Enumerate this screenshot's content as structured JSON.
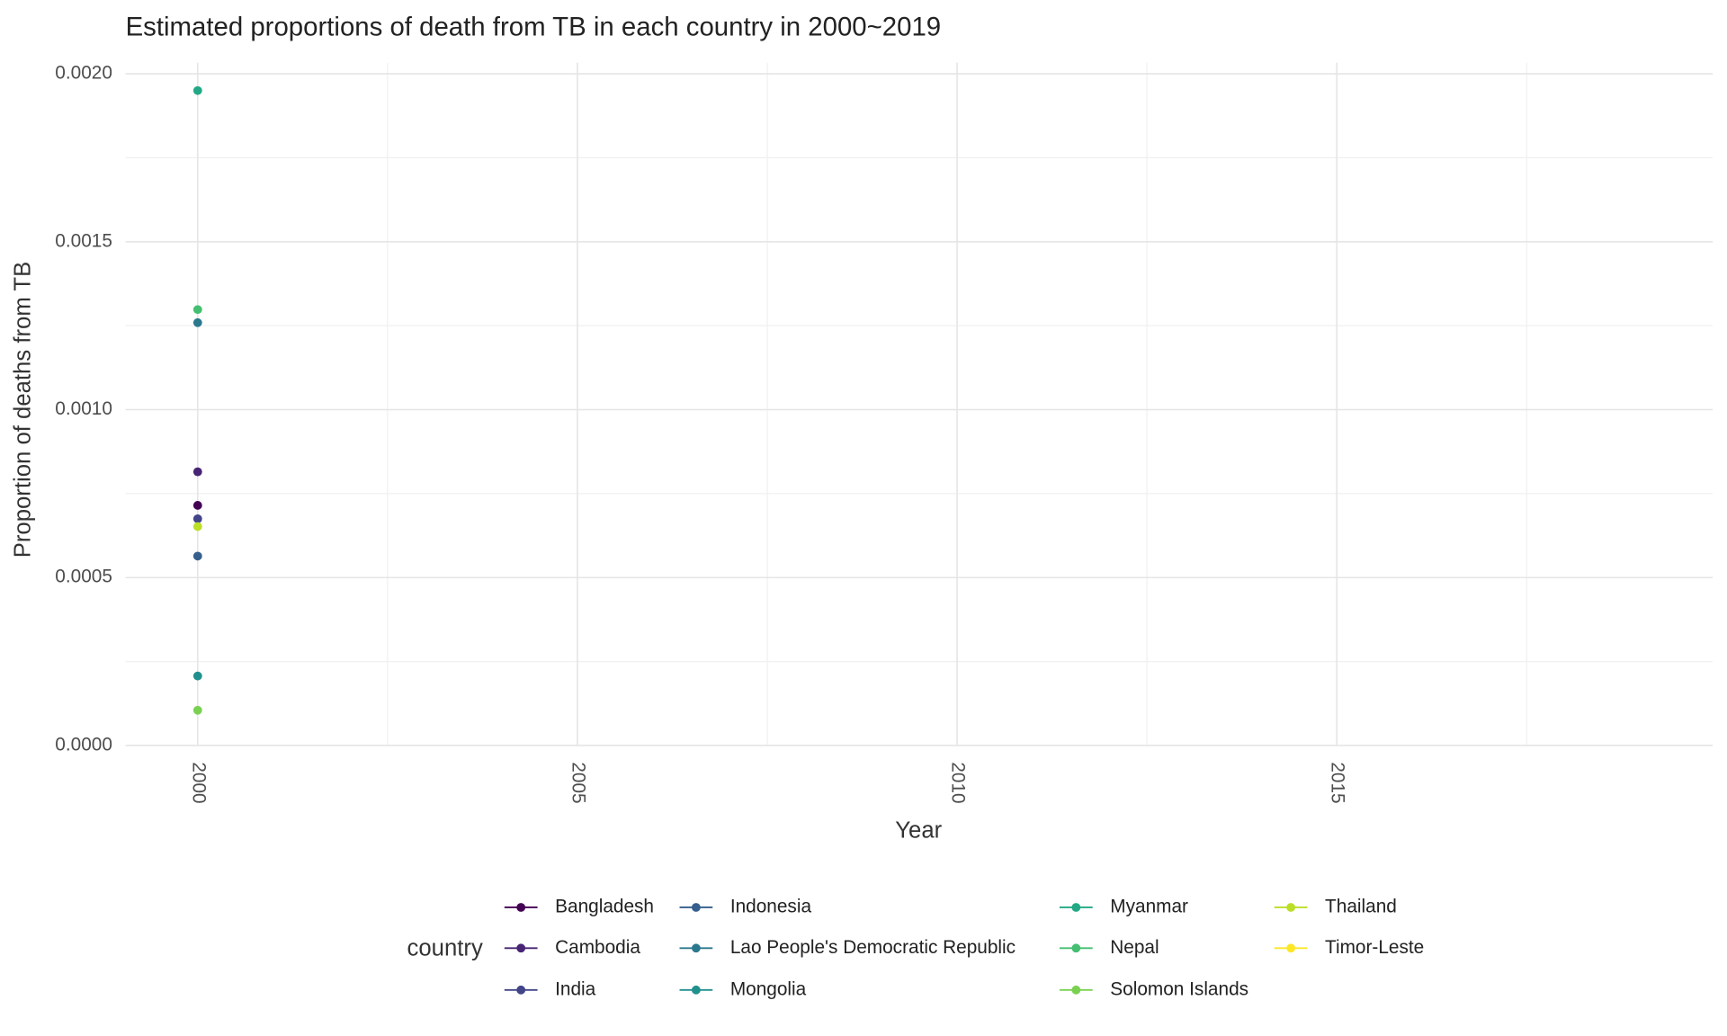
{
  "chart_data": {
    "type": "scatter",
    "title": "Estimated proportions of death from TB in each country in 2000~2019",
    "x_label": "Year",
    "y_label": "Proportion of deaths from TB",
    "legend_title": "country",
    "legend_position": "bottom",
    "grid": true,
    "xlim": [
      1999.05,
      2019.95
    ],
    "xticks": [
      2000,
      2005,
      2010,
      2015
    ],
    "ylim": [
      0,
      0.002
    ],
    "yticks": [
      {
        "value": 0,
        "label": "0.0000"
      },
      {
        "value": 0.0005,
        "label": "0.0005"
      },
      {
        "value": 0.001,
        "label": "0.0010"
      },
      {
        "value": 0.0015,
        "label": "0.0015"
      },
      {
        "value": 0.002,
        "label": "0.0020"
      }
    ],
    "series": [
      {
        "name": "Bangladesh",
        "color": "#440154",
        "x": [
          2000
        ],
        "values": [
          0.000715
        ]
      },
      {
        "name": "Cambodia",
        "color": "#482475",
        "x": [
          2000
        ],
        "values": [
          0.000815
        ]
      },
      {
        "name": "India",
        "color": "#414487",
        "x": [
          2000
        ],
        "values": [
          0.000675
        ]
      },
      {
        "name": "Indonesia",
        "color": "#355F8D",
        "x": [
          2000
        ],
        "values": [
          0.000564
        ]
      },
      {
        "name": "Lao People's Democratic Republic",
        "color": "#2A788E",
        "x": [
          2000
        ],
        "values": [
          0.001259
        ]
      },
      {
        "name": "Mongolia",
        "color": "#21908D",
        "x": [
          2000
        ],
        "values": [
          0.000207
        ]
      },
      {
        "name": "Myanmar",
        "color": "#22A884",
        "x": [
          2000
        ],
        "values": [
          0.00195
        ]
      },
      {
        "name": "Nepal",
        "color": "#43BF71",
        "x": [
          2000
        ],
        "values": [
          0.001298
        ]
      },
      {
        "name": "Solomon Islands",
        "color": "#7AD151",
        "x": [
          2000
        ],
        "values": [
          0.000105
        ]
      },
      {
        "name": "Thailand",
        "color": "#BBDF27",
        "x": [
          2000
        ],
        "values": [
          0.000652
        ]
      },
      {
        "name": "Timor-Leste",
        "color": "#FDE725",
        "x": [
          2000
        ],
        "values": [
          null
        ]
      }
    ]
  }
}
